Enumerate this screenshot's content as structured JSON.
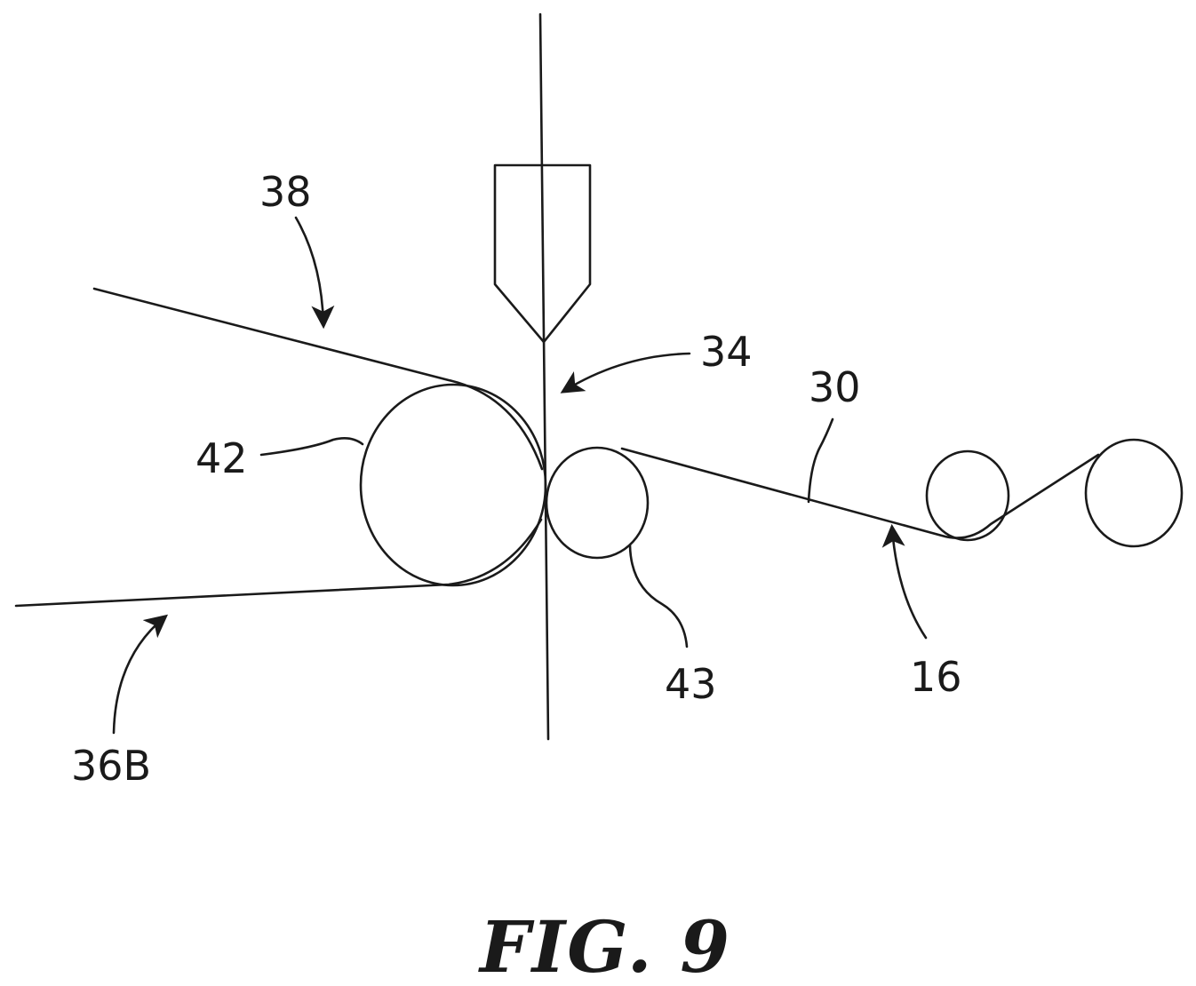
{
  "figure": {
    "caption": "FIG. 9",
    "labels": {
      "l38": "38",
      "l34": "34",
      "l30": "30",
      "l42": "42",
      "l43": "43",
      "l16": "16",
      "l36b": "36B"
    }
  },
  "colors": {
    "ink": "#1a1a1a",
    "background": "#ffffff"
  }
}
